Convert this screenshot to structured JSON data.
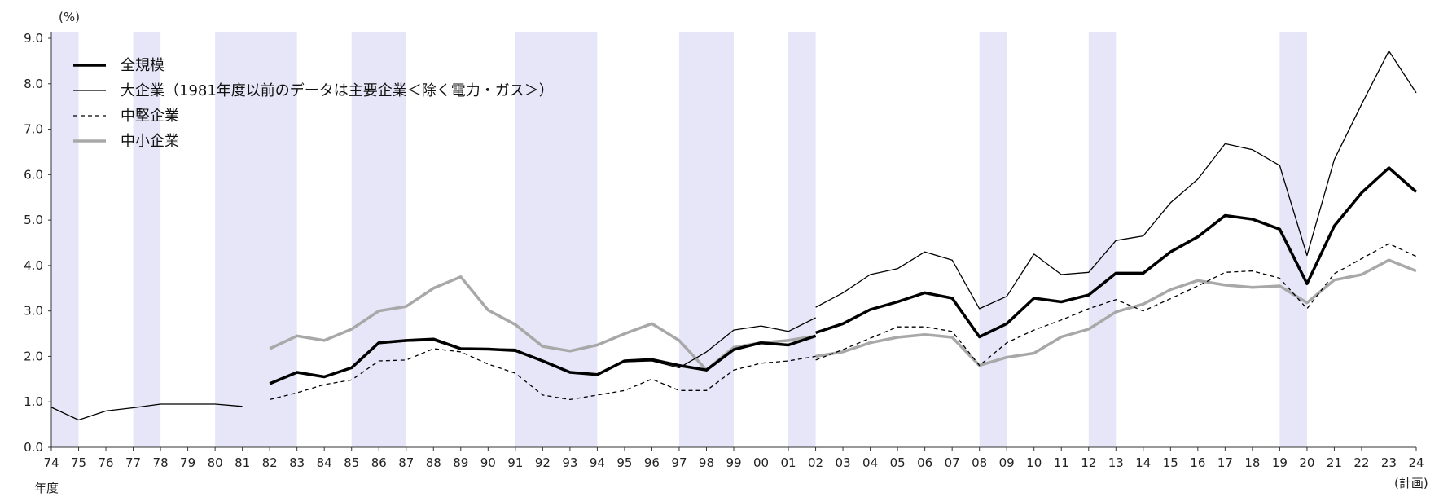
{
  "chart_data": {
    "type": "line",
    "unit_label": "(%)",
    "x_axis_label": "年度",
    "last_label_note": "(計画)",
    "ylim": [
      0,
      9
    ],
    "y_ticks": [
      "0.0",
      "1.0",
      "2.0",
      "3.0",
      "4.0",
      "5.0",
      "6.0",
      "7.0",
      "8.0",
      "9.0"
    ],
    "x": [
      "74",
      "75",
      "76",
      "77",
      "78",
      "79",
      "80",
      "81",
      "82",
      "83",
      "84",
      "85",
      "86",
      "87",
      "88",
      "89",
      "90",
      "91",
      "92",
      "93",
      "94",
      "95",
      "96",
      "97",
      "98",
      "99",
      "00",
      "01",
      "02",
      "03",
      "04",
      "05",
      "06",
      "07",
      "08",
      "09",
      "10",
      "11",
      "12",
      "13",
      "14",
      "15",
      "16",
      "17",
      "18",
      "19",
      "20",
      "21",
      "22",
      "23",
      "24"
    ],
    "recession_bands": [
      [
        "74",
        "75"
      ],
      [
        "77",
        "78"
      ],
      [
        "80",
        "83"
      ],
      [
        "85",
        "87"
      ],
      [
        "91",
        "94"
      ],
      [
        "97",
        "99"
      ],
      [
        "01",
        "02"
      ],
      [
        "08",
        "09"
      ],
      [
        "12",
        "13"
      ],
      [
        "19",
        "20"
      ]
    ],
    "series": [
      {
        "name": "全規模",
        "style": "thick-black",
        "segments": [
          {
            "start": "82",
            "values": [
              1.4,
              1.65,
              1.55,
              1.75,
              2.3,
              2.35,
              2.38,
              2.17,
              2.16,
              2.13,
              1.9,
              1.65,
              1.6,
              1.9,
              1.93,
              1.8,
              1.7,
              2.15,
              2.3,
              2.25,
              2.45
            ]
          },
          {
            "start": "02",
            "values": [
              2.52,
              2.72,
              3.03,
              3.2,
              3.4,
              3.28,
              2.43,
              2.72,
              3.28,
              3.2,
              3.35,
              3.83,
              3.83,
              4.3,
              4.63,
              5.1,
              5.02,
              4.8,
              3.6,
              4.87,
              5.6,
              6.15,
              5.62
            ]
          }
        ]
      },
      {
        "name": "大企業（1981年度以前のデータは主要企業＜除く電力・ガス＞）",
        "style": "thin-black",
        "segments": [
          {
            "start": "74",
            "values": [
              0.88,
              0.6,
              0.8,
              0.87,
              0.95,
              0.95,
              0.95,
              0.9
            ]
          },
          {
            "start": "82",
            "values": [
              1.38,
              1.65,
              1.55,
              1.75,
              2.28,
              2.33,
              2.35,
              2.15,
              2.17,
              2.16,
              1.88,
              1.65,
              1.6,
              1.88,
              1.9,
              1.75,
              2.1,
              2.58,
              2.67,
              2.55,
              2.85
            ]
          },
          {
            "start": "02",
            "values": [
              3.08,
              3.4,
              3.8,
              3.93,
              4.3,
              4.12,
              3.05,
              3.32,
              4.25,
              3.8,
              3.85,
              4.55,
              4.65,
              5.38,
              5.9,
              6.68,
              6.55,
              6.2,
              4.22,
              6.33,
              7.55,
              8.72,
              7.8
            ]
          }
        ]
      },
      {
        "name": "中堅企業",
        "style": "dashed-black",
        "segments": [
          {
            "start": "82",
            "values": [
              1.05,
              1.2,
              1.38,
              1.48,
              1.9,
              1.92,
              2.17,
              2.1,
              1.83,
              1.63,
              1.15,
              1.05,
              1.15,
              1.25,
              1.5,
              1.25,
              1.25,
              1.7,
              1.85,
              1.9,
              2.0
            ]
          },
          {
            "start": "02",
            "values": [
              1.92,
              2.15,
              2.4,
              2.65,
              2.65,
              2.55,
              1.8,
              2.3,
              2.58,
              2.8,
              3.05,
              3.25,
              3.0,
              3.27,
              3.55,
              3.85,
              3.88,
              3.72,
              3.05,
              3.82,
              4.15,
              4.48,
              4.2
            ]
          }
        ]
      },
      {
        "name": "中小企業",
        "style": "thick-gray",
        "segments": [
          {
            "start": "82",
            "values": [
              2.17,
              2.45,
              2.35,
              2.6,
              3.0,
              3.1,
              3.5,
              3.75,
              3.02,
              2.7,
              2.22,
              2.12,
              2.25,
              2.5,
              2.72,
              2.35,
              1.7,
              2.2,
              2.3,
              2.35,
              2.45
            ]
          },
          {
            "start": "02",
            "values": [
              2.0,
              2.1,
              2.3,
              2.42,
              2.48,
              2.42,
              1.8,
              1.98,
              2.07,
              2.43,
              2.6,
              2.98,
              3.15,
              3.47,
              3.67,
              3.57,
              3.52,
              3.55,
              3.18,
              3.68,
              3.8,
              4.12,
              3.88
            ]
          }
        ]
      }
    ]
  }
}
